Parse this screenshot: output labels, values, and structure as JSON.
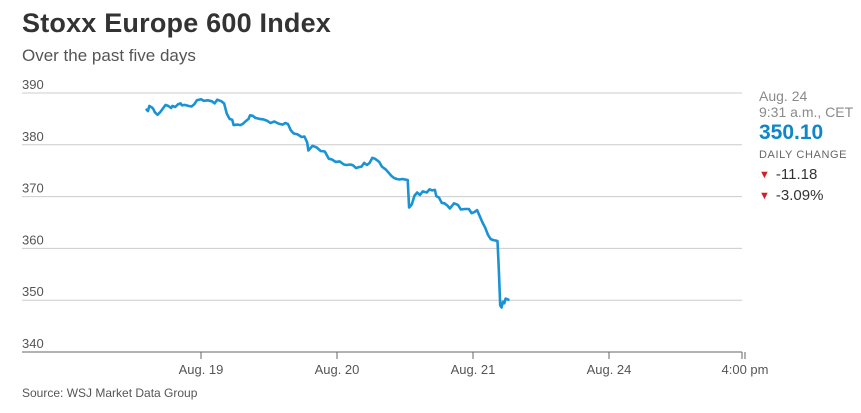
{
  "header": {
    "title": "Stoxx Europe 600 Index",
    "subtitle": "Over the past five days"
  },
  "info": {
    "date": "Aug. 24",
    "time": "9:31 a.m., CET",
    "price": "350.10",
    "change_label": "DAILY CHANGE",
    "change_abs": "-11.18",
    "change_pct": "-3.09%",
    "down_icon": "down-triangle-icon"
  },
  "footer": {
    "source": "Source: WSJ Market Data Group"
  },
  "colors": {
    "line": "#1a93d4",
    "grid": "#cccccc",
    "price": "#0f86c8",
    "down": "#d11f26",
    "text": "#333333"
  },
  "chart_data": {
    "type": "line",
    "title": "Stoxx Europe 600 Index",
    "subtitle": "Over the past five days",
    "ylim": [
      340,
      390
    ],
    "yticks": [
      390,
      380,
      370,
      360,
      350,
      340
    ],
    "xtick_labels": [
      "Aug. 19",
      "Aug. 20",
      "Aug. 21",
      "Aug. 24",
      "4:00 pm"
    ],
    "xlim": [
      -0.42,
      3.95
    ],
    "grid": true,
    "series": [
      {
        "values": [
          [
            -0.4,
            386.8
          ],
          [
            -0.39,
            386.5
          ],
          [
            -0.38,
            387.5
          ],
          [
            -0.36,
            387.2
          ],
          [
            -0.35,
            386.9
          ],
          [
            -0.34,
            386.3
          ],
          [
            -0.32,
            385.8
          ],
          [
            -0.3,
            386.3
          ],
          [
            -0.28,
            387.0
          ],
          [
            -0.26,
            387.7
          ],
          [
            -0.24,
            387.5
          ],
          [
            -0.22,
            387.1
          ],
          [
            -0.21,
            387.5
          ],
          [
            -0.19,
            387.3
          ],
          [
            -0.17,
            387.8
          ],
          [
            -0.15,
            388.0
          ],
          [
            -0.14,
            387.6
          ],
          [
            -0.12,
            387.7
          ],
          [
            -0.09,
            387.5
          ],
          [
            -0.07,
            387.4
          ],
          [
            -0.05,
            387.8
          ],
          [
            -0.03,
            388.6
          ],
          [
            0.0,
            388.8
          ],
          [
            0.02,
            388.5
          ],
          [
            0.05,
            388.6
          ],
          [
            0.08,
            388.4
          ],
          [
            0.1,
            388.0
          ],
          [
            0.12,
            388.7
          ],
          [
            0.15,
            388.4
          ],
          [
            0.17,
            388.0
          ],
          [
            0.19,
            386.0
          ],
          [
            0.21,
            385.0
          ],
          [
            0.23,
            384.8
          ],
          [
            0.24,
            383.8
          ],
          [
            0.27,
            383.9
          ],
          [
            0.29,
            383.8
          ],
          [
            0.31,
            384.1
          ],
          [
            0.33,
            384.6
          ],
          [
            0.35,
            385.0
          ],
          [
            0.36,
            385.7
          ],
          [
            0.38,
            385.6
          ],
          [
            0.4,
            385.2
          ],
          [
            0.43,
            385.0
          ],
          [
            0.46,
            384.9
          ],
          [
            0.49,
            384.6
          ],
          [
            0.51,
            384.2
          ],
          [
            0.54,
            384.5
          ],
          [
            0.57,
            384.1
          ],
          [
            0.6,
            383.9
          ],
          [
            0.62,
            384.2
          ],
          [
            0.64,
            384.0
          ],
          [
            0.66,
            382.8
          ],
          [
            0.68,
            382.2
          ],
          [
            0.71,
            382.0
          ],
          [
            0.74,
            381.5
          ],
          [
            0.76,
            381.6
          ],
          [
            0.78,
            380.5
          ],
          [
            0.79,
            378.9
          ],
          [
            0.8,
            379.2
          ],
          [
            0.82,
            379.8
          ],
          [
            0.85,
            379.5
          ],
          [
            0.88,
            378.8
          ],
          [
            0.91,
            378.7
          ],
          [
            0.94,
            377.3
          ],
          [
            0.96,
            377.2
          ],
          [
            0.99,
            376.7
          ],
          [
            1.02,
            376.8
          ],
          [
            1.05,
            376.2
          ],
          [
            1.07,
            376.1
          ],
          [
            1.1,
            376.2
          ],
          [
            1.12,
            376.0
          ],
          [
            1.14,
            375.5
          ],
          [
            1.16,
            375.7
          ],
          [
            1.18,
            375.8
          ],
          [
            1.2,
            376.5
          ],
          [
            1.22,
            376.1
          ],
          [
            1.24,
            376.5
          ],
          [
            1.26,
            377.5
          ],
          [
            1.28,
            377.3
          ],
          [
            1.31,
            376.7
          ],
          [
            1.33,
            375.8
          ],
          [
            1.36,
            375.2
          ],
          [
            1.38,
            374.6
          ],
          [
            1.4,
            374.0
          ],
          [
            1.42,
            373.6
          ],
          [
            1.44,
            373.4
          ],
          [
            1.46,
            373.3
          ],
          [
            1.48,
            373.4
          ],
          [
            1.5,
            373.3
          ],
          [
            1.52,
            373.2
          ],
          [
            1.53,
            367.9
          ],
          [
            1.55,
            368.5
          ],
          [
            1.57,
            370.2
          ],
          [
            1.59,
            370.8
          ],
          [
            1.61,
            370.3
          ],
          [
            1.63,
            371.0
          ],
          [
            1.66,
            370.8
          ],
          [
            1.68,
            371.4
          ],
          [
            1.7,
            371.2
          ],
          [
            1.72,
            371.3
          ],
          [
            1.73,
            370.1
          ],
          [
            1.75,
            369.8
          ],
          [
            1.77,
            368.8
          ],
          [
            1.79,
            368.7
          ],
          [
            1.81,
            368.3
          ],
          [
            1.83,
            367.7
          ],
          [
            1.86,
            368.7
          ],
          [
            1.89,
            368.4
          ],
          [
            1.91,
            367.5
          ],
          [
            1.94,
            367.6
          ],
          [
            1.97,
            367.6
          ],
          [
            1.99,
            366.8
          ],
          [
            2.01,
            367.0
          ],
          [
            2.03,
            367.4
          ],
          [
            2.05,
            366.2
          ],
          [
            2.07,
            365.0
          ],
          [
            2.09,
            364.0
          ],
          [
            2.11,
            362.6
          ],
          [
            2.13,
            361.8
          ],
          [
            2.15,
            361.6
          ],
          [
            2.17,
            361.5
          ],
          [
            2.18,
            361.4
          ],
          [
            2.19,
            356.0
          ],
          [
            2.2,
            349.0
          ],
          [
            2.21,
            348.6
          ],
          [
            2.22,
            349.7
          ],
          [
            2.23,
            349.4
          ],
          [
            2.24,
            350.3
          ],
          [
            2.26,
            350.1
          ]
        ]
      }
    ]
  }
}
